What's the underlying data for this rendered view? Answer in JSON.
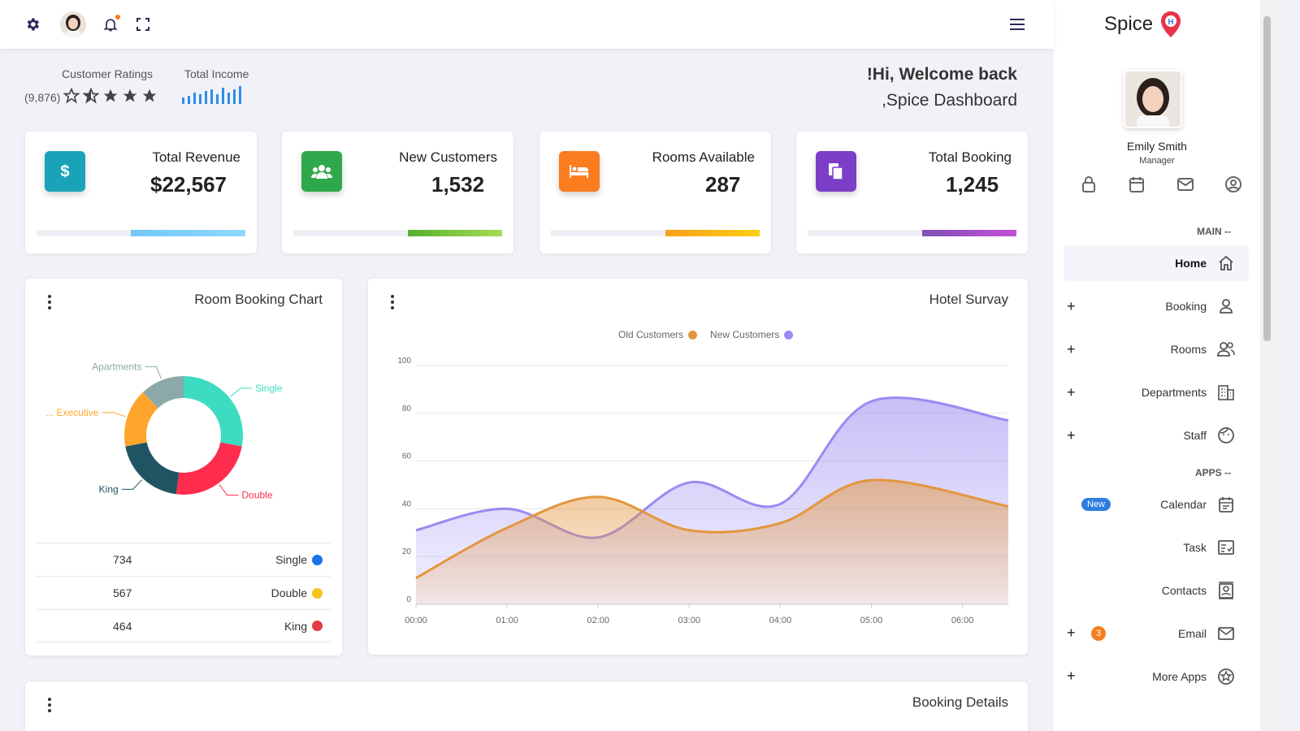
{
  "header": {
    "settings_icon": "gear-icon",
    "bell_icon": "bell-icon",
    "fullscreen_icon": "fullscreen-icon",
    "menu_icon": "hamburger-icon"
  },
  "sidebar": {
    "brand": "Spice",
    "user_name": "Emily Smith",
    "user_role": "Manager",
    "main_label": "MAIN --",
    "apps_label": "APPS --",
    "items": [
      {
        "label": "Home",
        "icon": "home-icon",
        "active": true
      },
      {
        "label": "Booking",
        "icon": "user-icon"
      },
      {
        "label": "Rooms",
        "icon": "users-icon"
      },
      {
        "label": "Departments",
        "icon": "building-icon"
      },
      {
        "label": "Staff",
        "icon": "face-icon"
      },
      {
        "label": "Calendar",
        "icon": "calendar-icon",
        "badge": "New"
      },
      {
        "label": "Task",
        "icon": "task-icon"
      },
      {
        "label": "Contacts",
        "icon": "contacts-icon"
      },
      {
        "label": "Email",
        "icon": "mail-icon",
        "badge": "3"
      },
      {
        "label": "More Apps",
        "icon": "star-circle-icon"
      }
    ]
  },
  "summary": {
    "ratings_label": "Customer Ratings",
    "ratings_count": "(9,876)",
    "rating_stars": 3,
    "income_label": "Total Income",
    "welcome_title": "!Hi, Welcome back",
    "welcome_subtitle": ",Spice Dashboard"
  },
  "stats": [
    {
      "title": "Total Revenue",
      "value": "$22,567",
      "color": "#1aa3b8",
      "bar_from": "#74c7f7",
      "bar_to": "#8ed9ff",
      "icon": "dollar-icon",
      "progress": 0.55
    },
    {
      "title": "New Customers",
      "value": "1,532",
      "color": "#2ea84a",
      "bar_from": "#59b030",
      "bar_to": "#a5dc55",
      "icon": "group-icon",
      "progress": 0.45
    },
    {
      "title": "Rooms Available",
      "value": "287",
      "color": "#fb7d20",
      "bar_from": "#f9a01b",
      "bar_to": "#fccf13",
      "icon": "bed-icon",
      "progress": 0.45
    },
    {
      "title": "Total Booking",
      "value": "1,245",
      "color": "#7c3ec7",
      "bar_from": "#7f51b3",
      "bar_to": "#c64fd6",
      "icon": "copy-icon",
      "progress": 0.45
    }
  ],
  "room_chart": {
    "title": "Room Booking Chart",
    "legend": [
      {
        "value": "734",
        "label": "Single",
        "color": "#1a73e8"
      },
      {
        "value": "567",
        "label": "Double",
        "color": "#f6c31a"
      },
      {
        "value": "464",
        "label": "King",
        "color": "#e53945"
      }
    ]
  },
  "hotel_survey": {
    "title": "Hotel Survay",
    "series_old": "Old Customers",
    "series_new": "New Customers"
  },
  "booking_details": {
    "title": "Booking Details"
  },
  "chart_data": [
    {
      "type": "pie",
      "title": "Room Booking Chart",
      "labels": [
        "Single",
        "Double",
        "King",
        "Executive",
        "Apartments"
      ],
      "values": [
        28,
        24,
        20,
        16,
        12
      ],
      "colors": [
        "#3ddcc0",
        "#ff2d4d",
        "#1f5563",
        "#ffa52b",
        "#8aa9a8"
      ]
    },
    {
      "type": "area",
      "title": "Hotel Survay",
      "x": [
        "00:00",
        "01:00",
        "02:00",
        "03:00",
        "04:00",
        "05:00",
        "06:00"
      ],
      "ylim": [
        0,
        100
      ],
      "yticks": [
        0,
        20,
        40,
        60,
        80,
        100
      ],
      "series": [
        {
          "name": "Old Customers",
          "color": "#e3963e",
          "values": [
            11,
            32,
            45,
            31,
            34,
            52,
            41
          ]
        },
        {
          "name": "New Customers",
          "color": "#9b8af1",
          "values": [
            31,
            40,
            28,
            51,
            42,
            85,
            77
          ]
        }
      ]
    }
  ]
}
